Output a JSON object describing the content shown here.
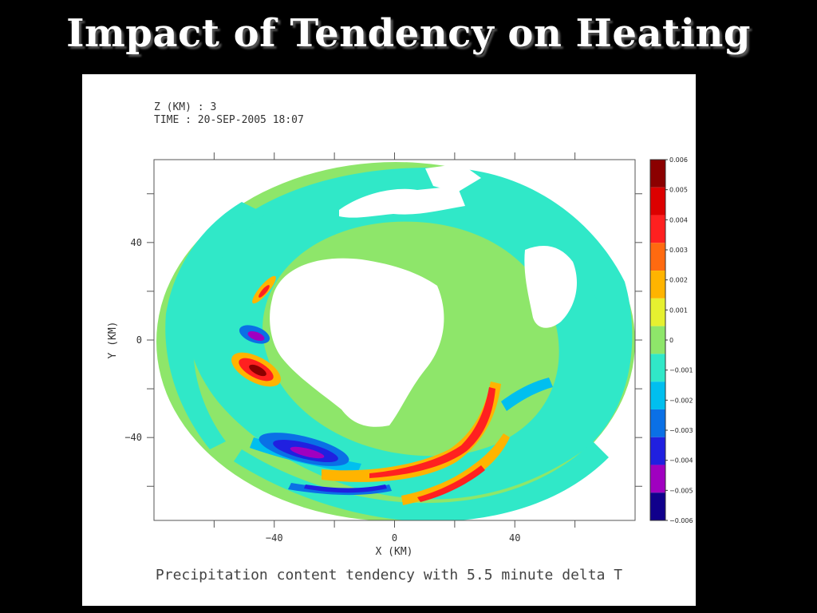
{
  "slide": {
    "title": "Impact of Tendency on Heating"
  },
  "plot_header": {
    "z_label": "Z (KM) : 3",
    "time_label": "TIME : 20-SEP-2005 18:07"
  },
  "caption": "Precipitation content tendency with 5.5 minute delta T",
  "chart_data": {
    "type": "heatmap",
    "title": "",
    "xlabel": "X (KM)",
    "ylabel": "Y (KM)",
    "xlim": [
      -80,
      80
    ],
    "ylim": [
      -74,
      74
    ],
    "x_ticks": [
      -40,
      0,
      40
    ],
    "y_ticks": [
      40,
      0,
      -40
    ],
    "colorbar": {
      "labels": [
        "0.006",
        "0.005",
        "0.004",
        "0.003",
        "0.002",
        "0.001",
        "0",
        "-0.001",
        "-0.002",
        "-0.003",
        "-0.004",
        "-0.005",
        "-0.006"
      ],
      "colors": [
        "#8b0000",
        "#dc0000",
        "#ff2020",
        "#ff6a10",
        "#ffb400",
        "#e6f030",
        "#8ee66a",
        "#30e8c8",
        "#00bfef",
        "#0a70e6",
        "#2020e0",
        "#a000c0",
        "#10008c"
      ]
    },
    "field_features": [
      {
        "name": "background",
        "value_class": "0",
        "x_center": 0,
        "y_center": 0
      },
      {
        "name": "eye",
        "value_class": "no data",
        "x_center": -12,
        "y_center": 6
      },
      {
        "name": "positive band west",
        "value_class": "0.006",
        "x_center": -42,
        "y_center": -13
      },
      {
        "name": "negative core west",
        "value_class": "-0.005",
        "x_center": -41,
        "y_center": 2
      },
      {
        "name": "negative band southwest",
        "value_class": "-0.005",
        "x_center": -28,
        "y_center": -47
      },
      {
        "name": "positive arc south",
        "value_class": "0.005",
        "x_center": 14,
        "y_center": -45
      },
      {
        "name": "negative arc south",
        "value_class": "-0.004",
        "x_center": -10,
        "y_center": -59
      }
    ]
  }
}
